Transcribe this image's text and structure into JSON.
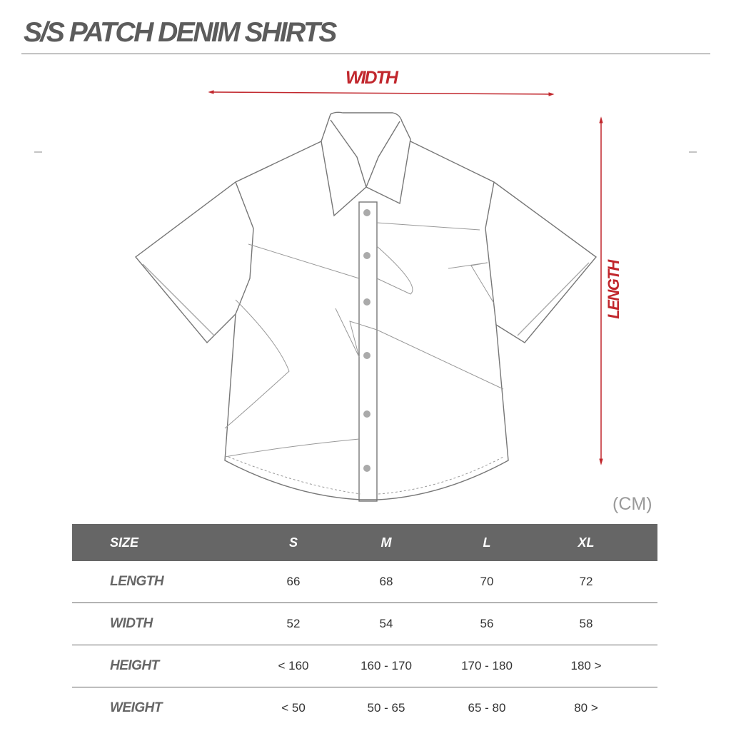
{
  "title": "S/S PATCH DENIM SHIRTS",
  "diagram": {
    "width_label": "WIDTH",
    "length_label": "LENGTH",
    "accent_color": "#c1272d"
  },
  "unit": "(CM)",
  "table": {
    "headers": [
      "SIZE",
      "S",
      "M",
      "L",
      "XL"
    ],
    "rows": [
      {
        "label": "LENGTH",
        "values": [
          "66",
          "68",
          "70",
          "72"
        ]
      },
      {
        "label": "WIDTH",
        "values": [
          "52",
          "54",
          "56",
          "58"
        ]
      },
      {
        "label": "HEIGHT",
        "values": [
          "< 160",
          "160 - 170",
          "170 - 180",
          "180 >"
        ]
      },
      {
        "label": "WEIGHT",
        "values": [
          "< 50",
          "50 - 65",
          "65 - 80",
          "80 >"
        ]
      }
    ]
  }
}
